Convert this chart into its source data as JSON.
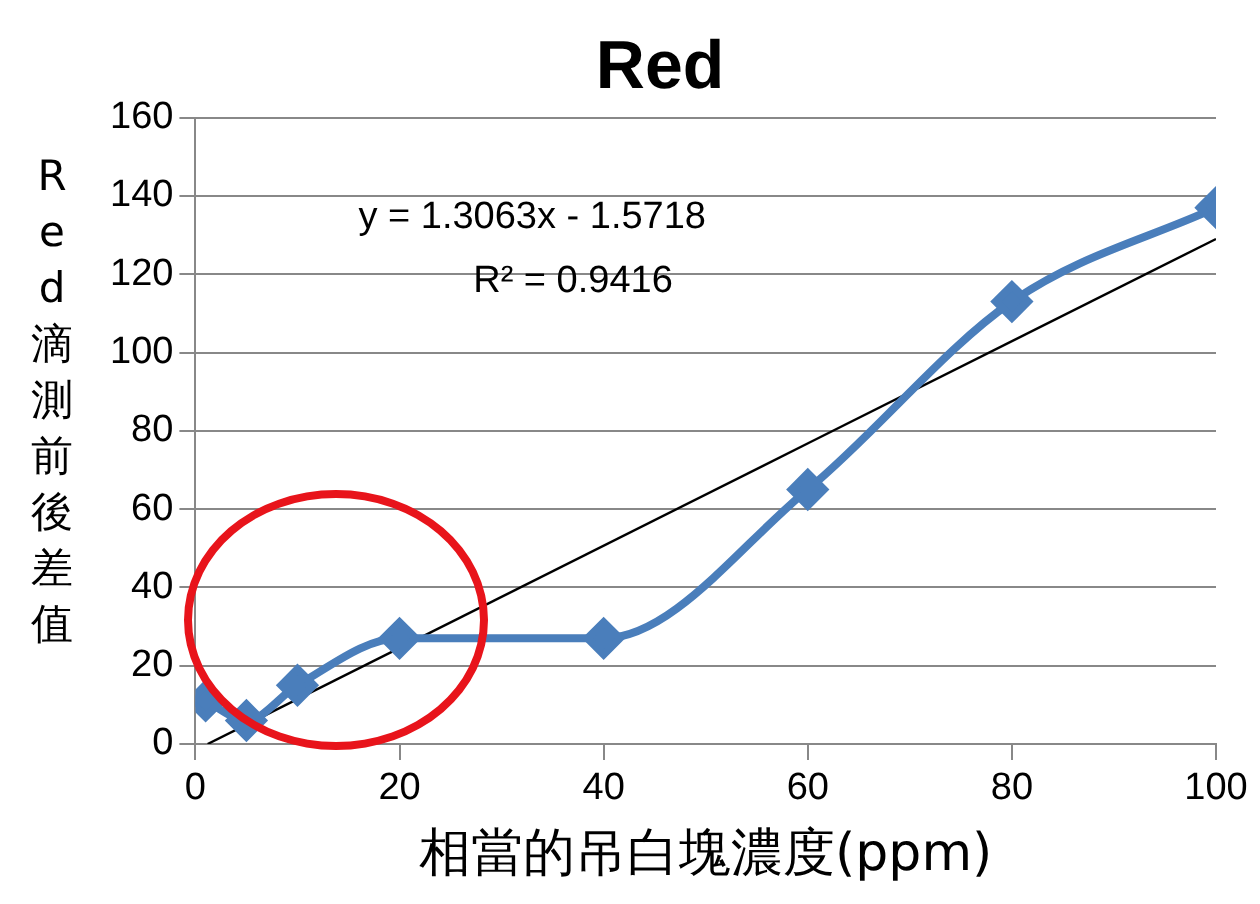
{
  "chart_data": {
    "type": "line",
    "title": "Red",
    "xlabel": "相當的吊白塊濃度(ppm)",
    "ylabel": "Red滴測前後差值",
    "x": [
      1,
      5,
      10,
      20,
      40,
      60,
      80,
      100
    ],
    "series": [
      {
        "color": "#4a7ebb",
        "values": [
          11,
          6,
          15,
          27,
          27,
          65,
          113,
          137
        ],
        "marker": "diamond"
      },
      {
        "type": "line",
        "color": "#000000",
        "x": [
          1.2,
          100
        ],
        "values": [
          0,
          129
        ],
        "marker": "none"
      }
    ],
    "xlim": [
      0,
      100
    ],
    "xticks": [
      0,
      20,
      40,
      60,
      80,
      100
    ],
    "ylim": [
      0,
      160
    ],
    "yticks": [
      0,
      20,
      40,
      60,
      80,
      100,
      120,
      140,
      160
    ],
    "grid": "y",
    "legend": false,
    "annotations": [
      "y = 1.3063x - 1.5718",
      "R² = 0.9416"
    ]
  }
}
